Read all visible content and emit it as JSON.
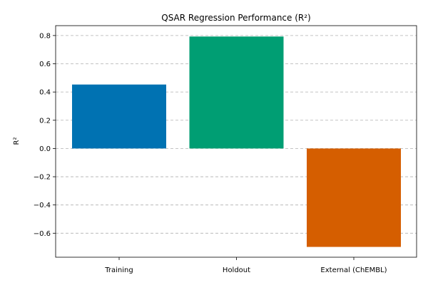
{
  "chart_data": {
    "type": "bar",
    "title": "QSAR Regression Performance (R²)",
    "xlabel": "",
    "ylabel": "R²",
    "categories": [
      "Training",
      "Holdout",
      "External (ChEMBL)"
    ],
    "values": [
      0.453,
      0.793,
      -0.697
    ],
    "colors": [
      "#0072b2",
      "#009e73",
      "#d55e00"
    ],
    "ylim": [
      -0.77,
      0.87
    ],
    "yticks": [
      -0.6,
      -0.4,
      -0.2,
      0.0,
      0.2,
      0.4,
      0.6,
      0.8
    ],
    "ytick_labels": [
      "−0.6",
      "−0.4",
      "−0.2",
      "0.0",
      "0.2",
      "0.4",
      "0.6",
      "0.8"
    ],
    "grid": "y-dashed",
    "legend": "none"
  }
}
